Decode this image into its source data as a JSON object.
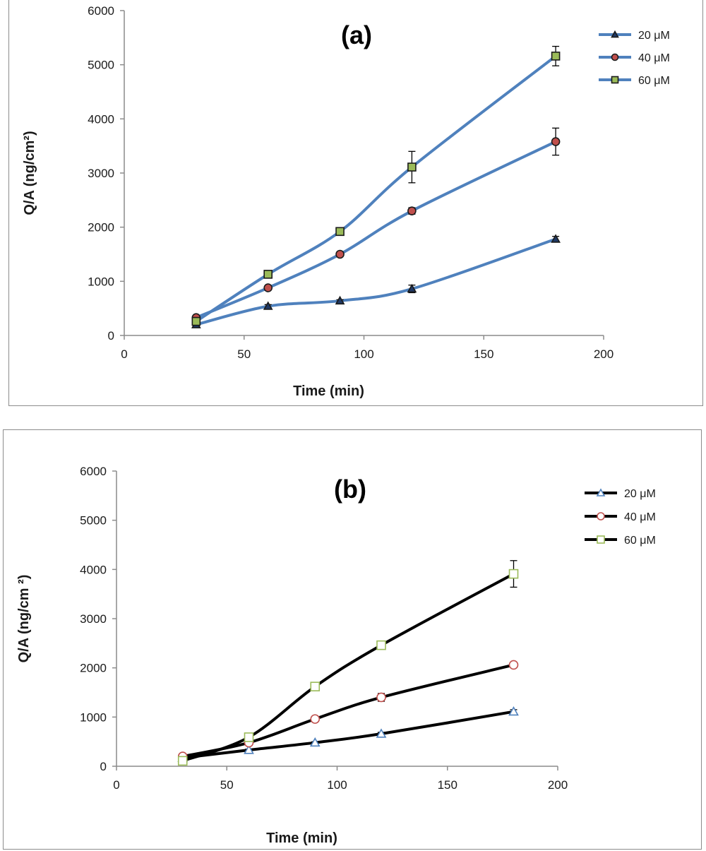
{
  "chart_data": [
    {
      "type": "line",
      "title": "(a)",
      "xlabel": "Time (min)",
      "ylabel": "Q/A (ng/cm²)",
      "xlim": [
        0,
        200
      ],
      "ylim": [
        0,
        6000
      ],
      "xticks": [
        "0",
        "50",
        "100",
        "150",
        "200"
      ],
      "yticks": [
        "0",
        "1000",
        "2000",
        "3000",
        "4000",
        "5000",
        "6000"
      ],
      "x": [
        30,
        60,
        90,
        120,
        180
      ],
      "line_color": "#4f81bd",
      "grid": false,
      "legend_position": "top-right",
      "series": [
        {
          "name": "20 μM",
          "marker": "triangle",
          "marker_fill": "#1f3864",
          "values": [
            200,
            540,
            640,
            860,
            1780
          ],
          "errors": [
            20,
            30,
            20,
            70,
            50
          ]
        },
        {
          "name": "40 μM",
          "marker": "circle",
          "marker_fill": "#c0504d",
          "values": [
            330,
            880,
            1500,
            2300,
            3580
          ],
          "errors": [
            20,
            30,
            20,
            60,
            250
          ]
        },
        {
          "name": "60 μM",
          "marker": "square",
          "marker_fill": "#9bbb59",
          "values": [
            260,
            1130,
            1920,
            3110,
            5160
          ],
          "errors": [
            20,
            30,
            20,
            290,
            180
          ]
        }
      ]
    },
    {
      "type": "line",
      "title": "(b)",
      "xlabel": "Time (min)",
      "ylabel": "Q/A (ng/cm ²)",
      "xlim": [
        0,
        200
      ],
      "ylim": [
        0,
        6000
      ],
      "xticks": [
        "0",
        "50",
        "100",
        "150",
        "200"
      ],
      "yticks": [
        "0",
        "1000",
        "2000",
        "3000",
        "4000",
        "5000",
        "6000"
      ],
      "x": [
        30,
        60,
        90,
        120,
        180
      ],
      "line_color": "#000000",
      "grid": false,
      "legend_position": "top-right",
      "series": [
        {
          "name": "20 μM",
          "marker": "triangle",
          "marker_stroke": "#4f81bd",
          "values": [
            170,
            330,
            480,
            660,
            1110
          ],
          "errors": [
            20,
            20,
            20,
            30,
            40
          ]
        },
        {
          "name": "40 μM",
          "marker": "circle",
          "marker_stroke": "#c0504d",
          "values": [
            200,
            480,
            960,
            1400,
            2060
          ],
          "errors": [
            20,
            20,
            30,
            80,
            40
          ]
        },
        {
          "name": "60 μM",
          "marker": "square",
          "marker_stroke": "#9bbb59",
          "values": [
            110,
            590,
            1620,
            2460,
            3910
          ],
          "errors": [
            20,
            30,
            30,
            40,
            270
          ]
        }
      ]
    }
  ]
}
